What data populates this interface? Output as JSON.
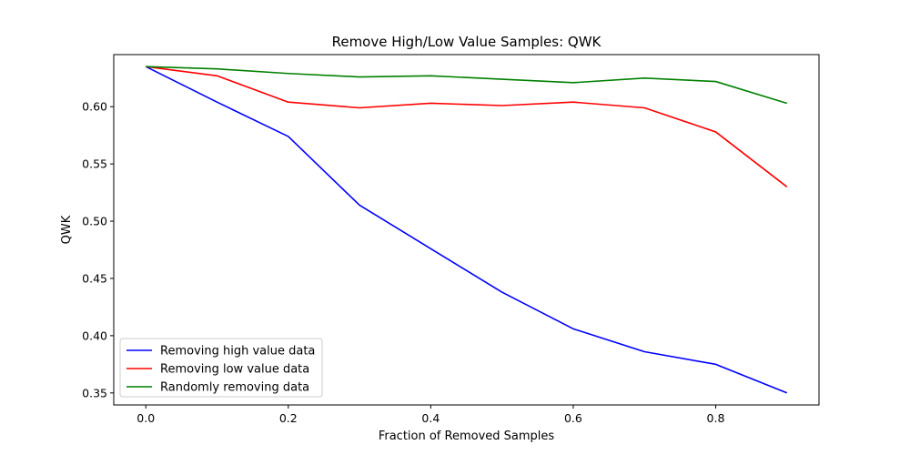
{
  "chart_data": {
    "type": "line",
    "title": "Remove High/Low Value Samples: QWK",
    "xlabel": "Fraction of Removed Samples",
    "ylabel": "QWK",
    "xlim": [
      -0.045,
      0.945
    ],
    "ylim": [
      0.3395,
      0.6455
    ],
    "xticks": [
      0.0,
      0.2,
      0.4,
      0.6,
      0.8
    ],
    "xtick_labels": [
      "0.0",
      "0.2",
      "0.4",
      "0.6",
      "0.8"
    ],
    "yticks": [
      0.35,
      0.4,
      0.45,
      0.5,
      0.55,
      0.6
    ],
    "ytick_labels": [
      "0.35",
      "0.40",
      "0.45",
      "0.50",
      "0.55",
      "0.60"
    ],
    "grid": false,
    "legend_position": "lower-left",
    "x": [
      0.0,
      0.1,
      0.2,
      0.3,
      0.4,
      0.5,
      0.6,
      0.7,
      0.8,
      0.9
    ],
    "series": [
      {
        "name": "Removing high value data",
        "color": "#0000ff",
        "values": [
          0.635,
          0.604,
          0.574,
          0.514,
          0.476,
          0.438,
          0.406,
          0.386,
          0.375,
          0.35
        ]
      },
      {
        "name": "Removing low value data",
        "color": "#ff0000",
        "values": [
          0.635,
          0.627,
          0.604,
          0.599,
          0.603,
          0.601,
          0.604,
          0.599,
          0.578,
          0.53
        ]
      },
      {
        "name": "Randomly removing data",
        "color": "#008000",
        "values": [
          0.635,
          0.633,
          0.629,
          0.626,
          0.627,
          0.624,
          0.621,
          0.625,
          0.622,
          0.603
        ]
      }
    ]
  }
}
